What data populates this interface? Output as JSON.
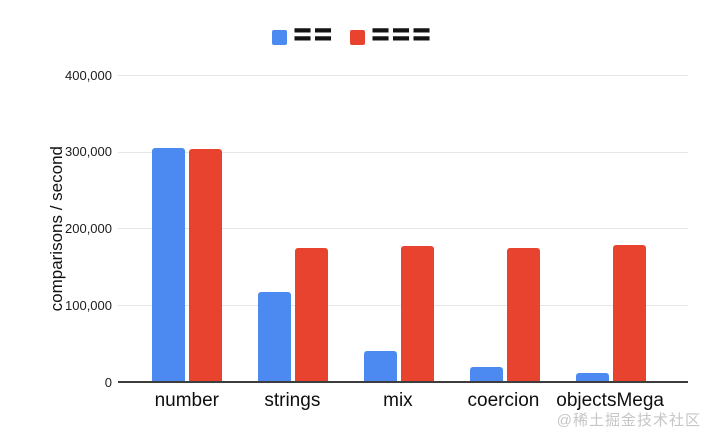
{
  "legend": {
    "items": [
      {
        "key": "loose-equality",
        "label": "==",
        "color": "#4c8af2"
      },
      {
        "key": "strict-equality",
        "label": "===",
        "color": "#e8432f"
      }
    ]
  },
  "chart_data": {
    "type": "bar",
    "title": "",
    "categories": [
      "number",
      "strings",
      "mix",
      "coercion",
      "objectsMega"
    ],
    "series": [
      {
        "name": "==",
        "key": "loose-equality",
        "color": "#4c8af2",
        "values": [
          305000,
          117000,
          40000,
          19000,
          12000
        ]
      },
      {
        "name": "===",
        "key": "strict-equality",
        "color": "#e8432f",
        "values": [
          303000,
          174000,
          177000,
          175000,
          178000
        ]
      }
    ],
    "xlabel": "",
    "ylabel": "comparisons / second",
    "ylim": [
      0,
      400000
    ],
    "yticks": [
      "400,000",
      "300,000",
      "200,000",
      "100,000",
      "0"
    ],
    "grid": true,
    "legend_position": "top",
    "grid_color": "#e6e6e6",
    "axis_line_color": "#3d3d3d"
  },
  "watermark": "@稀土掘金技术社区"
}
